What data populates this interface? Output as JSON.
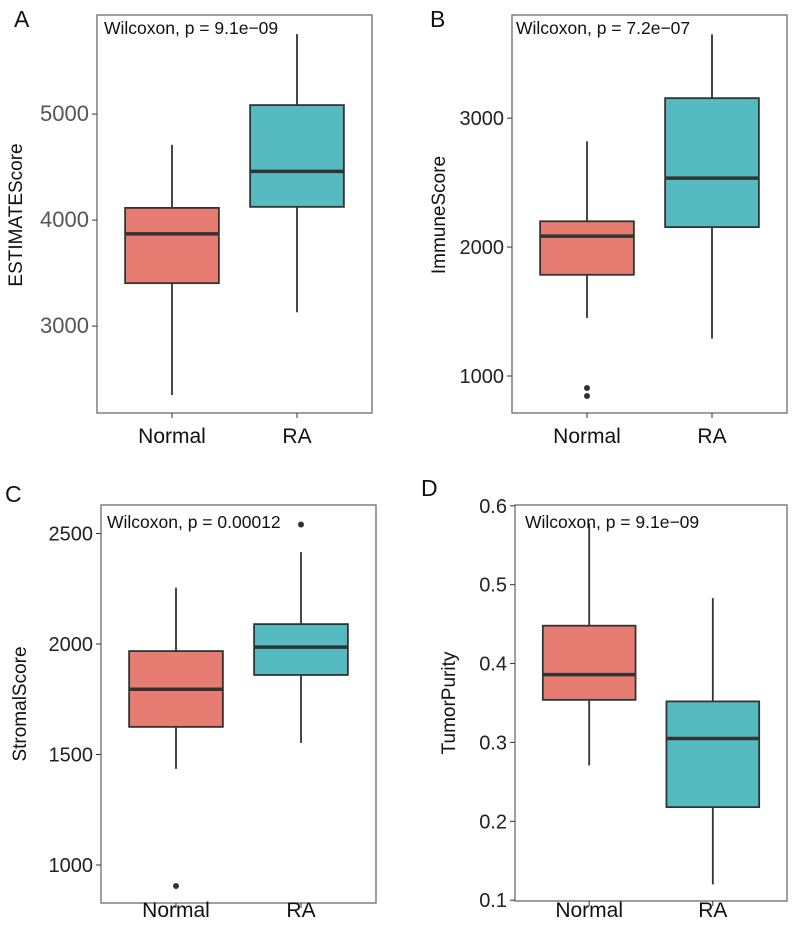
{
  "chart_data": [
    {
      "type": "box",
      "panel_label": "A",
      "annotation": "Wilcoxon, p = 9.1e−09",
      "xlabel": "",
      "ylabel": "ESTIMATEScore",
      "categories": [
        "Normal",
        "RA"
      ],
      "ylim": [
        2180,
        5935
      ],
      "yticks": [
        3000,
        4000,
        5000
      ],
      "ytick_labels": [
        "3000",
        "4000",
        "5000"
      ],
      "grid": false,
      "boxes": [
        {
          "category": "Normal",
          "whisker_low": 2350,
          "q1": 3405,
          "median": 3870,
          "q3": 4115,
          "whisker_high": 4710,
          "outliers": []
        },
        {
          "category": "RA",
          "whisker_low": 3130,
          "q1": 4125,
          "median": 4460,
          "q3": 5085,
          "whisker_high": 5755,
          "outliers": []
        }
      ]
    },
    {
      "type": "box",
      "panel_label": "B",
      "annotation": "Wilcoxon, p = 7.2e−07",
      "xlabel": "",
      "ylabel": "ImmuneScore",
      "categories": [
        "Normal",
        "RA"
      ],
      "ylim": [
        713,
        3800
      ],
      "yticks": [
        1000,
        2000,
        3000
      ],
      "ytick_labels": [
        "1000",
        "2000",
        "3000"
      ],
      "grid": false,
      "boxes": [
        {
          "category": "Normal",
          "whisker_low": 1450,
          "q1": 1785,
          "median": 2085,
          "q3": 2200,
          "whisker_high": 2820,
          "outliers": [
            907,
            845
          ]
        },
        {
          "category": "RA",
          "whisker_low": 1290,
          "q1": 2155,
          "median": 2535,
          "q3": 3155,
          "whisker_high": 3650,
          "outliers": []
        }
      ]
    },
    {
      "type": "box",
      "panel_label": "C",
      "annotation": "Wilcoxon, p = 0.00012",
      "xlabel": "",
      "ylabel": "StromalScore",
      "categories": [
        "Normal",
        "RA"
      ],
      "ylim": [
        828,
        2629
      ],
      "yticks": [
        1000,
        1500,
        2000,
        2500
      ],
      "ytick_labels": [
        "1000",
        "1500",
        "2000",
        "2500"
      ],
      "grid": false,
      "boxes": [
        {
          "category": "Normal",
          "whisker_low": 1435,
          "q1": 1625,
          "median": 1795,
          "q3": 1968,
          "whisker_high": 2255,
          "outliers": [
            905
          ]
        },
        {
          "category": "RA",
          "whisker_low": 1552,
          "q1": 1860,
          "median": 1986,
          "q3": 2090,
          "whisker_high": 2416,
          "outliers": [
            2541
          ]
        }
      ]
    },
    {
      "type": "box",
      "panel_label": "D",
      "annotation": "Wilcoxon, p = 9.1e−09",
      "xlabel": "",
      "ylabel": "TumorPurity",
      "categories": [
        "Normal",
        "RA"
      ],
      "ylim": [
        0.099,
        0.601
      ],
      "yticks": [
        0.1,
        0.2,
        0.3,
        0.4,
        0.5,
        0.6
      ],
      "ytick_labels": [
        "0.1",
        "0.2",
        "0.3",
        "0.4",
        "0.5",
        "0.6"
      ],
      "grid": false,
      "boxes": [
        {
          "category": "Normal",
          "whisker_low": 0.271,
          "q1": 0.354,
          "median": 0.386,
          "q3": 0.448,
          "whisker_high": 0.578,
          "outliers": []
        },
        {
          "category": "RA",
          "whisker_low": 0.12,
          "q1": 0.218,
          "median": 0.305,
          "q3": 0.352,
          "whisker_high": 0.483,
          "outliers": []
        }
      ]
    }
  ],
  "colors": {
    "Normal": "#E77C72",
    "RA": "#55BBC1",
    "outline": "#333333",
    "panel_border": "#6b6b6b"
  }
}
